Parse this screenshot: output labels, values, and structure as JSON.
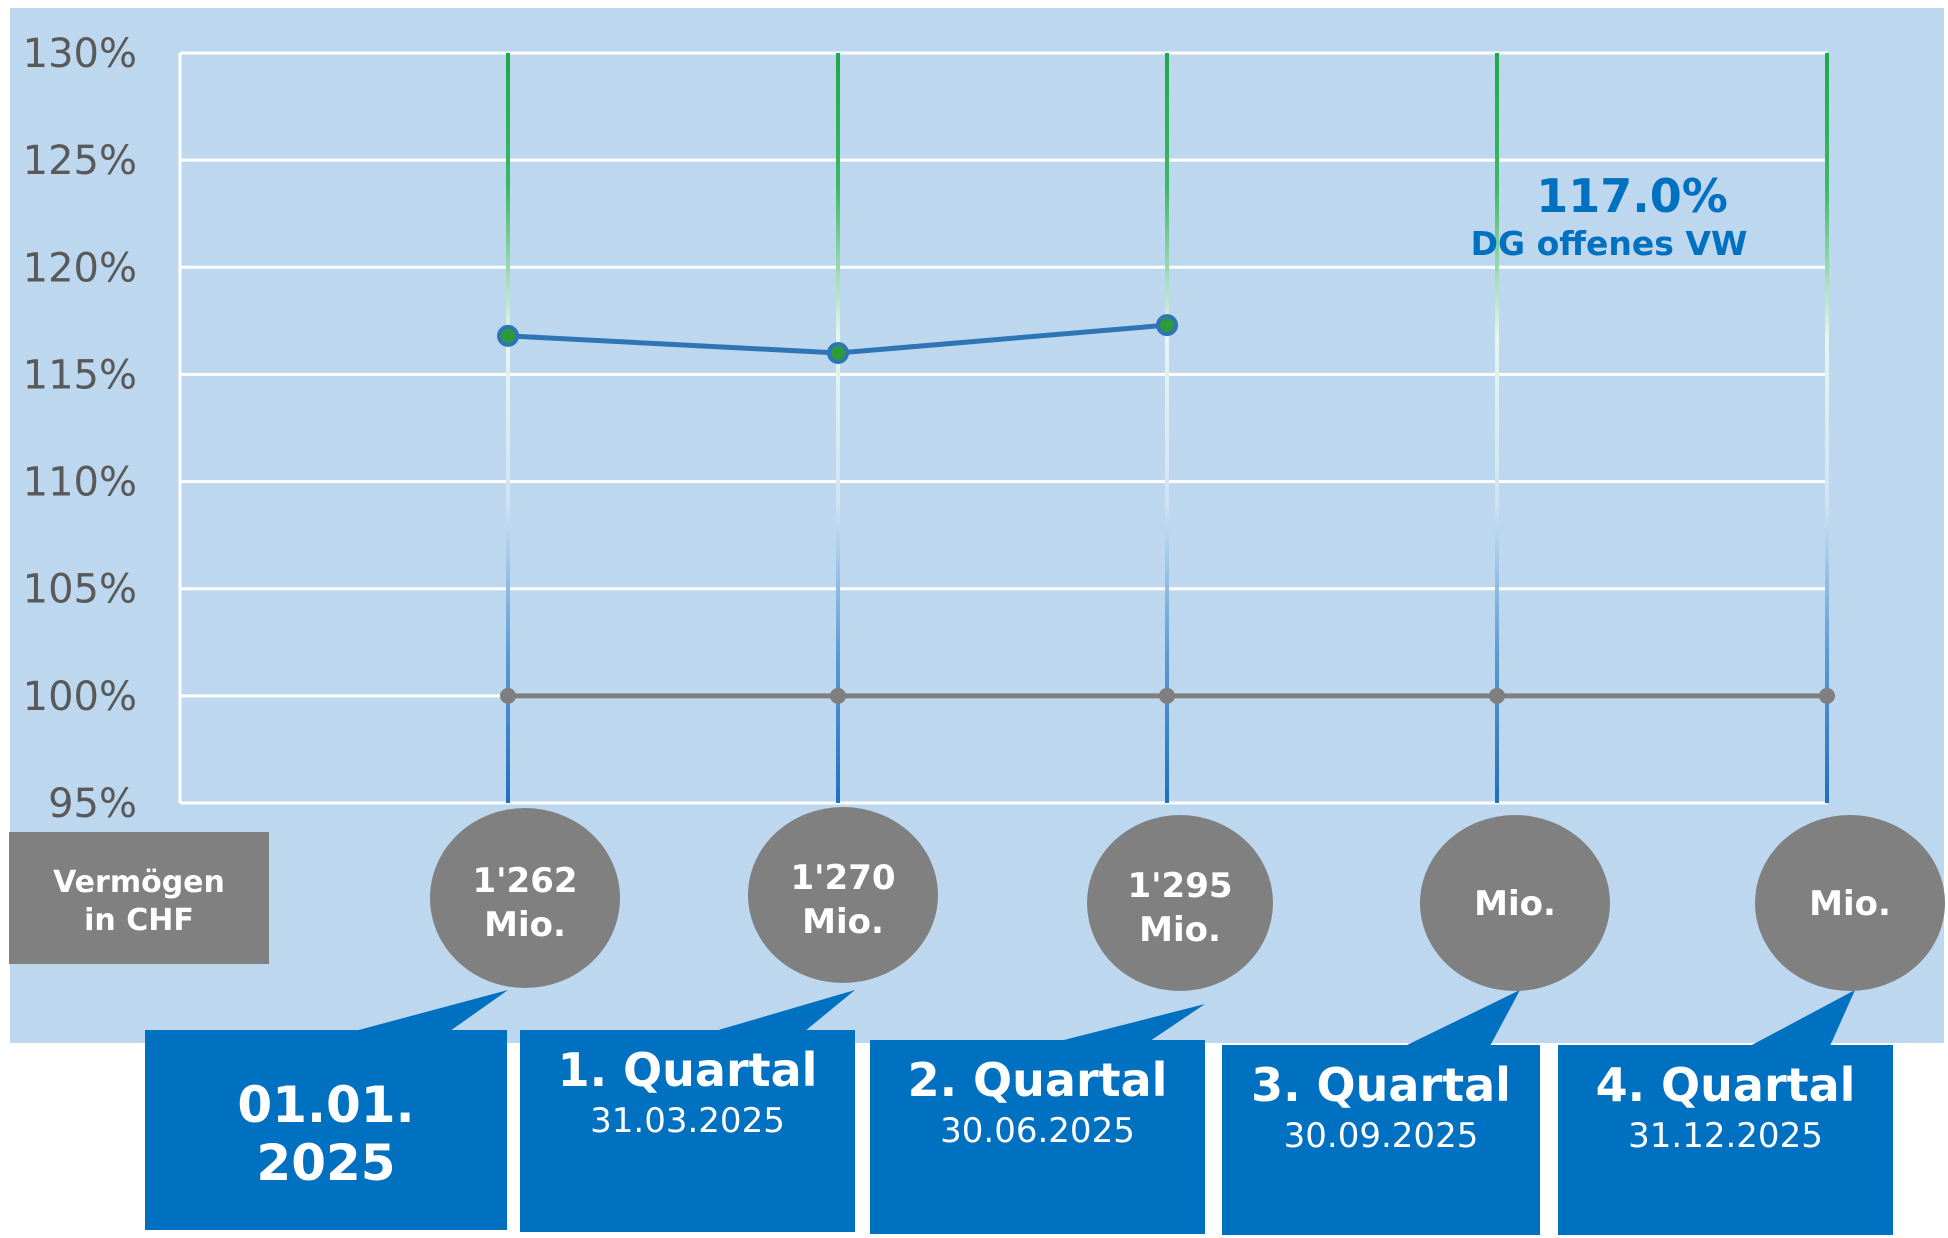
{
  "colors": {
    "background": "#bdd7ee",
    "grid": "#ffffff",
    "series_line": "#2e75b6",
    "marker_fill": "#2e9a3a",
    "reference_line": "#7f7f7f",
    "vertical_top": "#1ea84a",
    "vertical_bottom": "#1f6fc0",
    "bubble": "#808080",
    "callout": "#0070c0",
    "annotation_text": "#0070c0",
    "tick_text": "#595959"
  },
  "chart_data": {
    "type": "line",
    "categories": [
      "01.01. 2025",
      "1. Quartal",
      "2. Quartal",
      "3. Quartal",
      "4. Quartal"
    ],
    "y_ticks": [
      "130%",
      "125%",
      "120%",
      "115%",
      "110%",
      "105%",
      "100%",
      "95%"
    ],
    "ylim": [
      95,
      130
    ],
    "grid": true,
    "series": [
      {
        "values": [
          116.8,
          116.0,
          117.3,
          null,
          null
        ]
      },
      {
        "values": [
          100,
          100,
          100,
          100,
          100
        ]
      }
    ],
    "annotation": {
      "value": "117.0%",
      "label": "DG offenes VW"
    }
  },
  "row_label": {
    "line1": "Vermögen",
    "line2": "in CHF"
  },
  "assets": [
    {
      "line1": "1'262",
      "line2": "Mio."
    },
    {
      "line1": "1'270",
      "line2": "Mio."
    },
    {
      "line1": "1'295",
      "line2": "Mio."
    },
    {
      "line1": "",
      "line2": "Mio."
    },
    {
      "line1": "",
      "line2": "Mio."
    }
  ],
  "periods": [
    {
      "title": "01.01.",
      "date": "2025",
      "big_date": true
    },
    {
      "title": "1. Quartal",
      "date": "31.03.2025",
      "big_date": false
    },
    {
      "title": "2. Quartal",
      "date": "30.06.2025",
      "big_date": false
    },
    {
      "title": "3. Quartal",
      "date": "30.09.2025",
      "big_date": false
    },
    {
      "title": "4. Quartal",
      "date": "31.12.2025",
      "big_date": false
    }
  ]
}
